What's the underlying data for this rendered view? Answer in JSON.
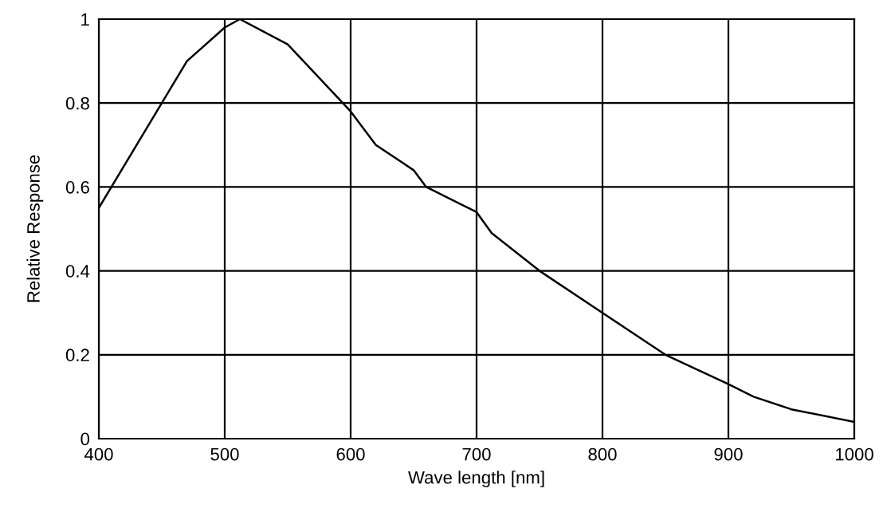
{
  "chart_data": {
    "type": "line",
    "xlabel": "Wave length [nm]",
    "ylabel": "Relative Response",
    "x": [
      400,
      470,
      500,
      512,
      550,
      600,
      620,
      650,
      660,
      700,
      712,
      750,
      800,
      850,
      900,
      920,
      950,
      1000
    ],
    "series": [
      {
        "color": "#000000",
        "values": [
          0.55,
          0.9,
          0.98,
          1.0,
          0.94,
          0.78,
          0.7,
          0.64,
          0.6,
          0.54,
          0.49,
          0.4,
          0.3,
          0.2,
          0.13,
          0.1,
          0.07,
          0.04
        ]
      }
    ],
    "xlim": [
      400,
      1000
    ],
    "xticks": [
      400,
      500,
      600,
      700,
      800,
      900,
      1000
    ],
    "ylim": [
      0,
      1
    ],
    "yticks": [
      0,
      0.2,
      0.4,
      0.6,
      0.8,
      1
    ],
    "grid": true,
    "marker": "none",
    "line_style": "solid"
  }
}
